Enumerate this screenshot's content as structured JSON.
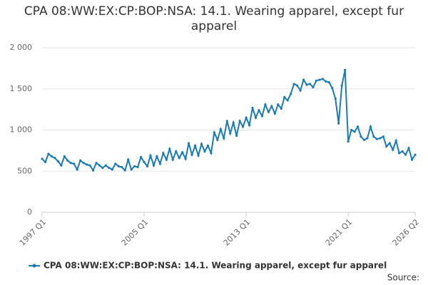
{
  "chart_data": {
    "type": "line",
    "title": "CPA 08:WW:EX:CP:BOP:NSA: 14.1. Wearing apparel, except fur apparel",
    "source": "Source:",
    "categories": [
      "1997 Q1",
      null,
      null,
      null,
      null,
      null,
      null,
      null,
      null,
      null,
      null,
      null,
      null,
      null,
      null,
      null,
      null,
      null,
      null,
      null,
      null,
      null,
      null,
      null,
      null,
      null,
      null,
      null,
      null,
      null,
      null,
      null,
      "2005 Q1",
      null,
      null,
      null,
      null,
      null,
      null,
      null,
      null,
      null,
      null,
      null,
      null,
      null,
      null,
      null,
      null,
      null,
      null,
      null,
      null,
      null,
      null,
      null,
      null,
      null,
      null,
      null,
      null,
      null,
      null,
      null,
      "2013 Q1",
      null,
      null,
      null,
      null,
      null,
      null,
      null,
      null,
      null,
      null,
      null,
      null,
      null,
      null,
      null,
      null,
      null,
      null,
      null,
      null,
      null,
      null,
      null,
      null,
      null,
      null,
      null,
      null,
      null,
      null,
      null,
      "2021 Q1",
      null,
      null,
      null,
      null,
      null,
      null,
      null,
      null,
      null,
      null,
      null,
      null,
      null,
      null,
      null,
      null,
      null,
      null,
      null,
      null,
      "2026 Q2"
    ],
    "series": [
      {
        "name": "CPA 08:WW:EX:CP:BOP:NSA: 14.1. Wearing apparel, except fur apparel",
        "color": "#1a7ab5",
        "values": [
          650,
          610,
          710,
          680,
          660,
          620,
          570,
          680,
          630,
          600,
          590,
          520,
          630,
          600,
          580,
          570,
          510,
          600,
          570,
          540,
          570,
          540,
          520,
          590,
          560,
          550,
          510,
          640,
          520,
          560,
          550,
          670,
          610,
          560,
          690,
          570,
          680,
          590,
          720,
          640,
          770,
          640,
          740,
          660,
          730,
          650,
          840,
          700,
          810,
          690,
          830,
          740,
          810,
          720,
          970,
          880,
          1010,
          900,
          1110,
          960,
          1090,
          930,
          1110,
          1040,
          1150,
          1060,
          1270,
          1150,
          1240,
          1170,
          1310,
          1220,
          1290,
          1200,
          1310,
          1260,
          1400,
          1360,
          1440,
          1560,
          1540,
          1480,
          1610,
          1550,
          1560,
          1520,
          1600,
          1610,
          1620,
          1590,
          1580,
          1510,
          1380,
          1080,
          1540,
          1730,
          860,
          1000,
          980,
          1040,
          920,
          880,
          900,
          1040,
          920,
          890,
          900,
          920,
          800,
          840,
          760,
          870,
          720,
          740,
          700,
          780,
          640,
          700
        ]
      }
    ],
    "ylim": [
      0,
      2000
    ],
    "yticks": [
      0,
      500,
      {
        "value": 1000,
        "label": "1 000"
      },
      {
        "value": 1500,
        "label": "1 500"
      },
      {
        "value": 2000,
        "label": "2 000"
      }
    ],
    "grid": true
  }
}
